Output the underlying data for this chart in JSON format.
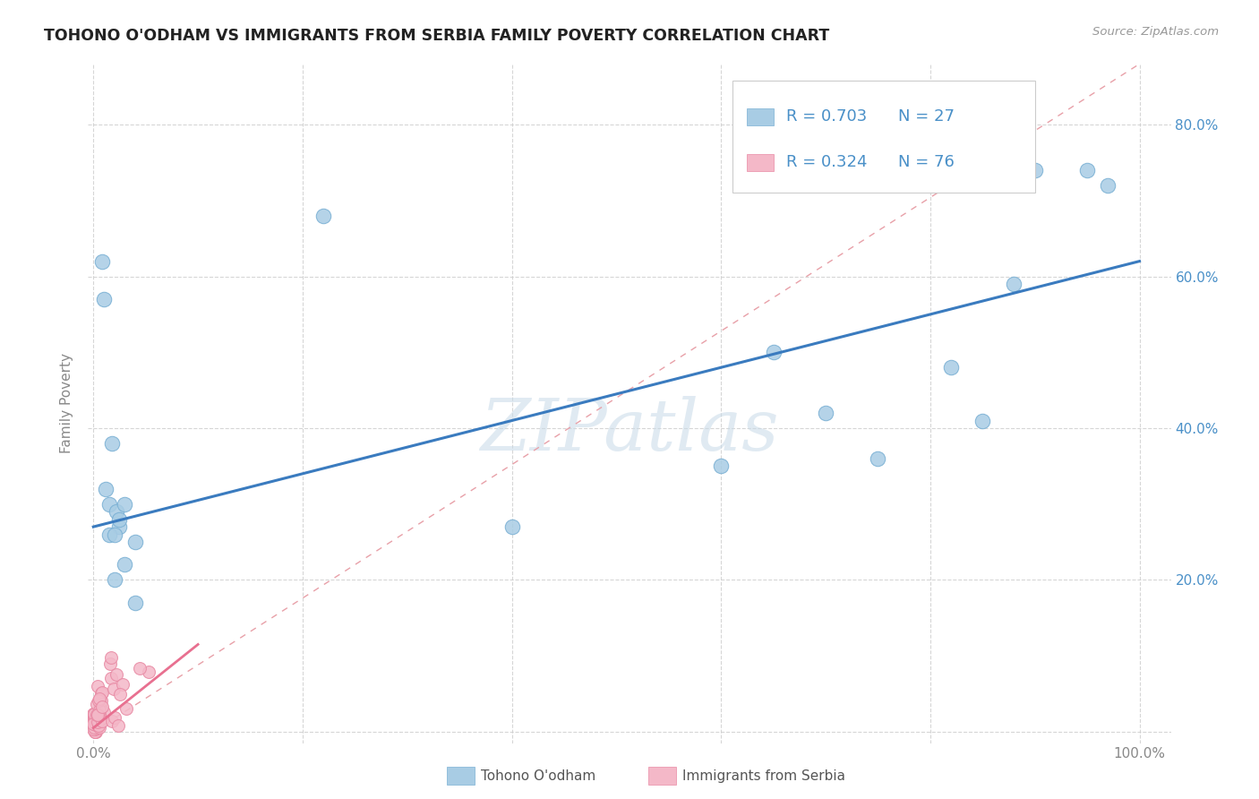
{
  "title": "TOHONO O'ODHAM VS IMMIGRANTS FROM SERBIA FAMILY POVERTY CORRELATION CHART",
  "source": "Source: ZipAtlas.com",
  "ylabel": "Family Poverty",
  "blue_color": "#a8cce4",
  "blue_edge": "#7ab0d4",
  "pink_color": "#f4b8c8",
  "pink_edge": "#e88aa4",
  "line_blue": "#3a7bbf",
  "line_pink": "#e87090",
  "dash_color": "#e8a0a8",
  "watermark_color": "#c8dae8",
  "right_tick_color": "#4a90c8",
  "tohono_x": [
    0.008,
    0.01,
    0.012,
    0.015,
    0.018,
    0.02,
    0.022,
    0.025,
    0.03,
    0.04,
    0.22,
    0.4,
    0.6,
    0.65,
    0.7,
    0.75,
    0.82,
    0.85,
    0.88,
    0.9,
    0.95,
    0.97,
    0.015,
    0.02,
    0.025,
    0.03,
    0.04
  ],
  "tohono_y": [
    0.62,
    0.57,
    0.32,
    0.3,
    0.38,
    0.2,
    0.29,
    0.27,
    0.3,
    0.25,
    0.68,
    0.27,
    0.35,
    0.5,
    0.42,
    0.36,
    0.48,
    0.41,
    0.59,
    0.74,
    0.74,
    0.72,
    0.26,
    0.26,
    0.28,
    0.22,
    0.17
  ],
  "blue_line_x0": 0.0,
  "blue_line_x1": 1.0,
  "blue_line_y0": 0.27,
  "blue_line_y1": 0.62,
  "pink_line_x0": 0.0,
  "pink_line_x1": 0.1,
  "pink_line_y0": 0.005,
  "pink_line_y1": 0.115,
  "xlim_min": -0.005,
  "xlim_max": 1.03,
  "ylim_min": -0.015,
  "ylim_max": 0.88
}
